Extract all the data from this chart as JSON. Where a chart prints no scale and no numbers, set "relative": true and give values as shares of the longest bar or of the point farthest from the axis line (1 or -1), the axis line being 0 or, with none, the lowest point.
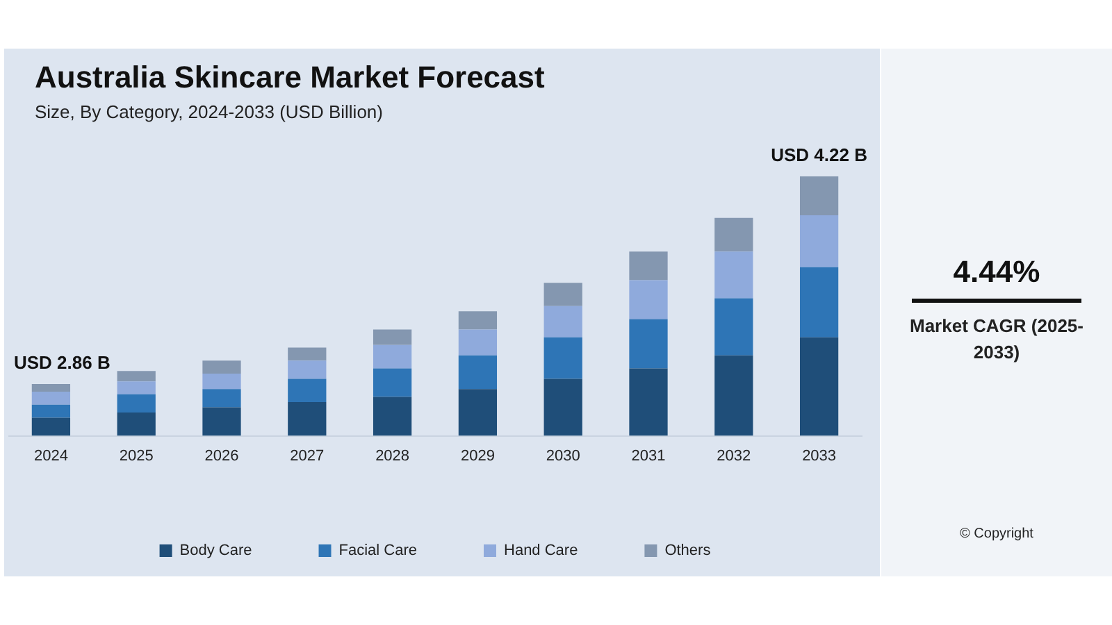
{
  "chart_data": {
    "type": "bar",
    "title": "Australia Skincare Market Forecast",
    "subtitle": "Size, By Category, 2024-2033 (USD Billion)",
    "categories": [
      "2024",
      "2025",
      "2026",
      "2027",
      "2028",
      "2029",
      "2030",
      "2031",
      "2032",
      "2033"
    ],
    "stacked": true,
    "relative": true,
    "series": [
      {
        "name": "Body Care",
        "color": "#1f4e79",
        "values": [
          0.07,
          0.09,
          0.11,
          0.13,
          0.15,
          0.18,
          0.22,
          0.26,
          0.31,
          0.38
        ]
      },
      {
        "name": "Facial Care",
        "color": "#2e75b6",
        "values": [
          0.05,
          0.07,
          0.07,
          0.09,
          0.11,
          0.13,
          0.16,
          0.19,
          0.22,
          0.27
        ]
      },
      {
        "name": "Hand Care",
        "color": "#8faadc",
        "values": [
          0.05,
          0.05,
          0.06,
          0.07,
          0.09,
          0.1,
          0.12,
          0.15,
          0.18,
          0.2
        ]
      },
      {
        "name": "Others",
        "color": "#8497b0",
        "values": [
          0.03,
          0.04,
          0.05,
          0.05,
          0.06,
          0.07,
          0.09,
          0.11,
          0.13,
          0.15
        ]
      }
    ],
    "totals": [
      "USD 2.86 B",
      null,
      null,
      null,
      null,
      null,
      null,
      null,
      null,
      "USD 4.22 B"
    ],
    "annotations": [
      "4.44%",
      "Market CAGR (2025-2033)",
      "© Copyright"
    ],
    "legend": "bottom",
    "grid": false
  }
}
